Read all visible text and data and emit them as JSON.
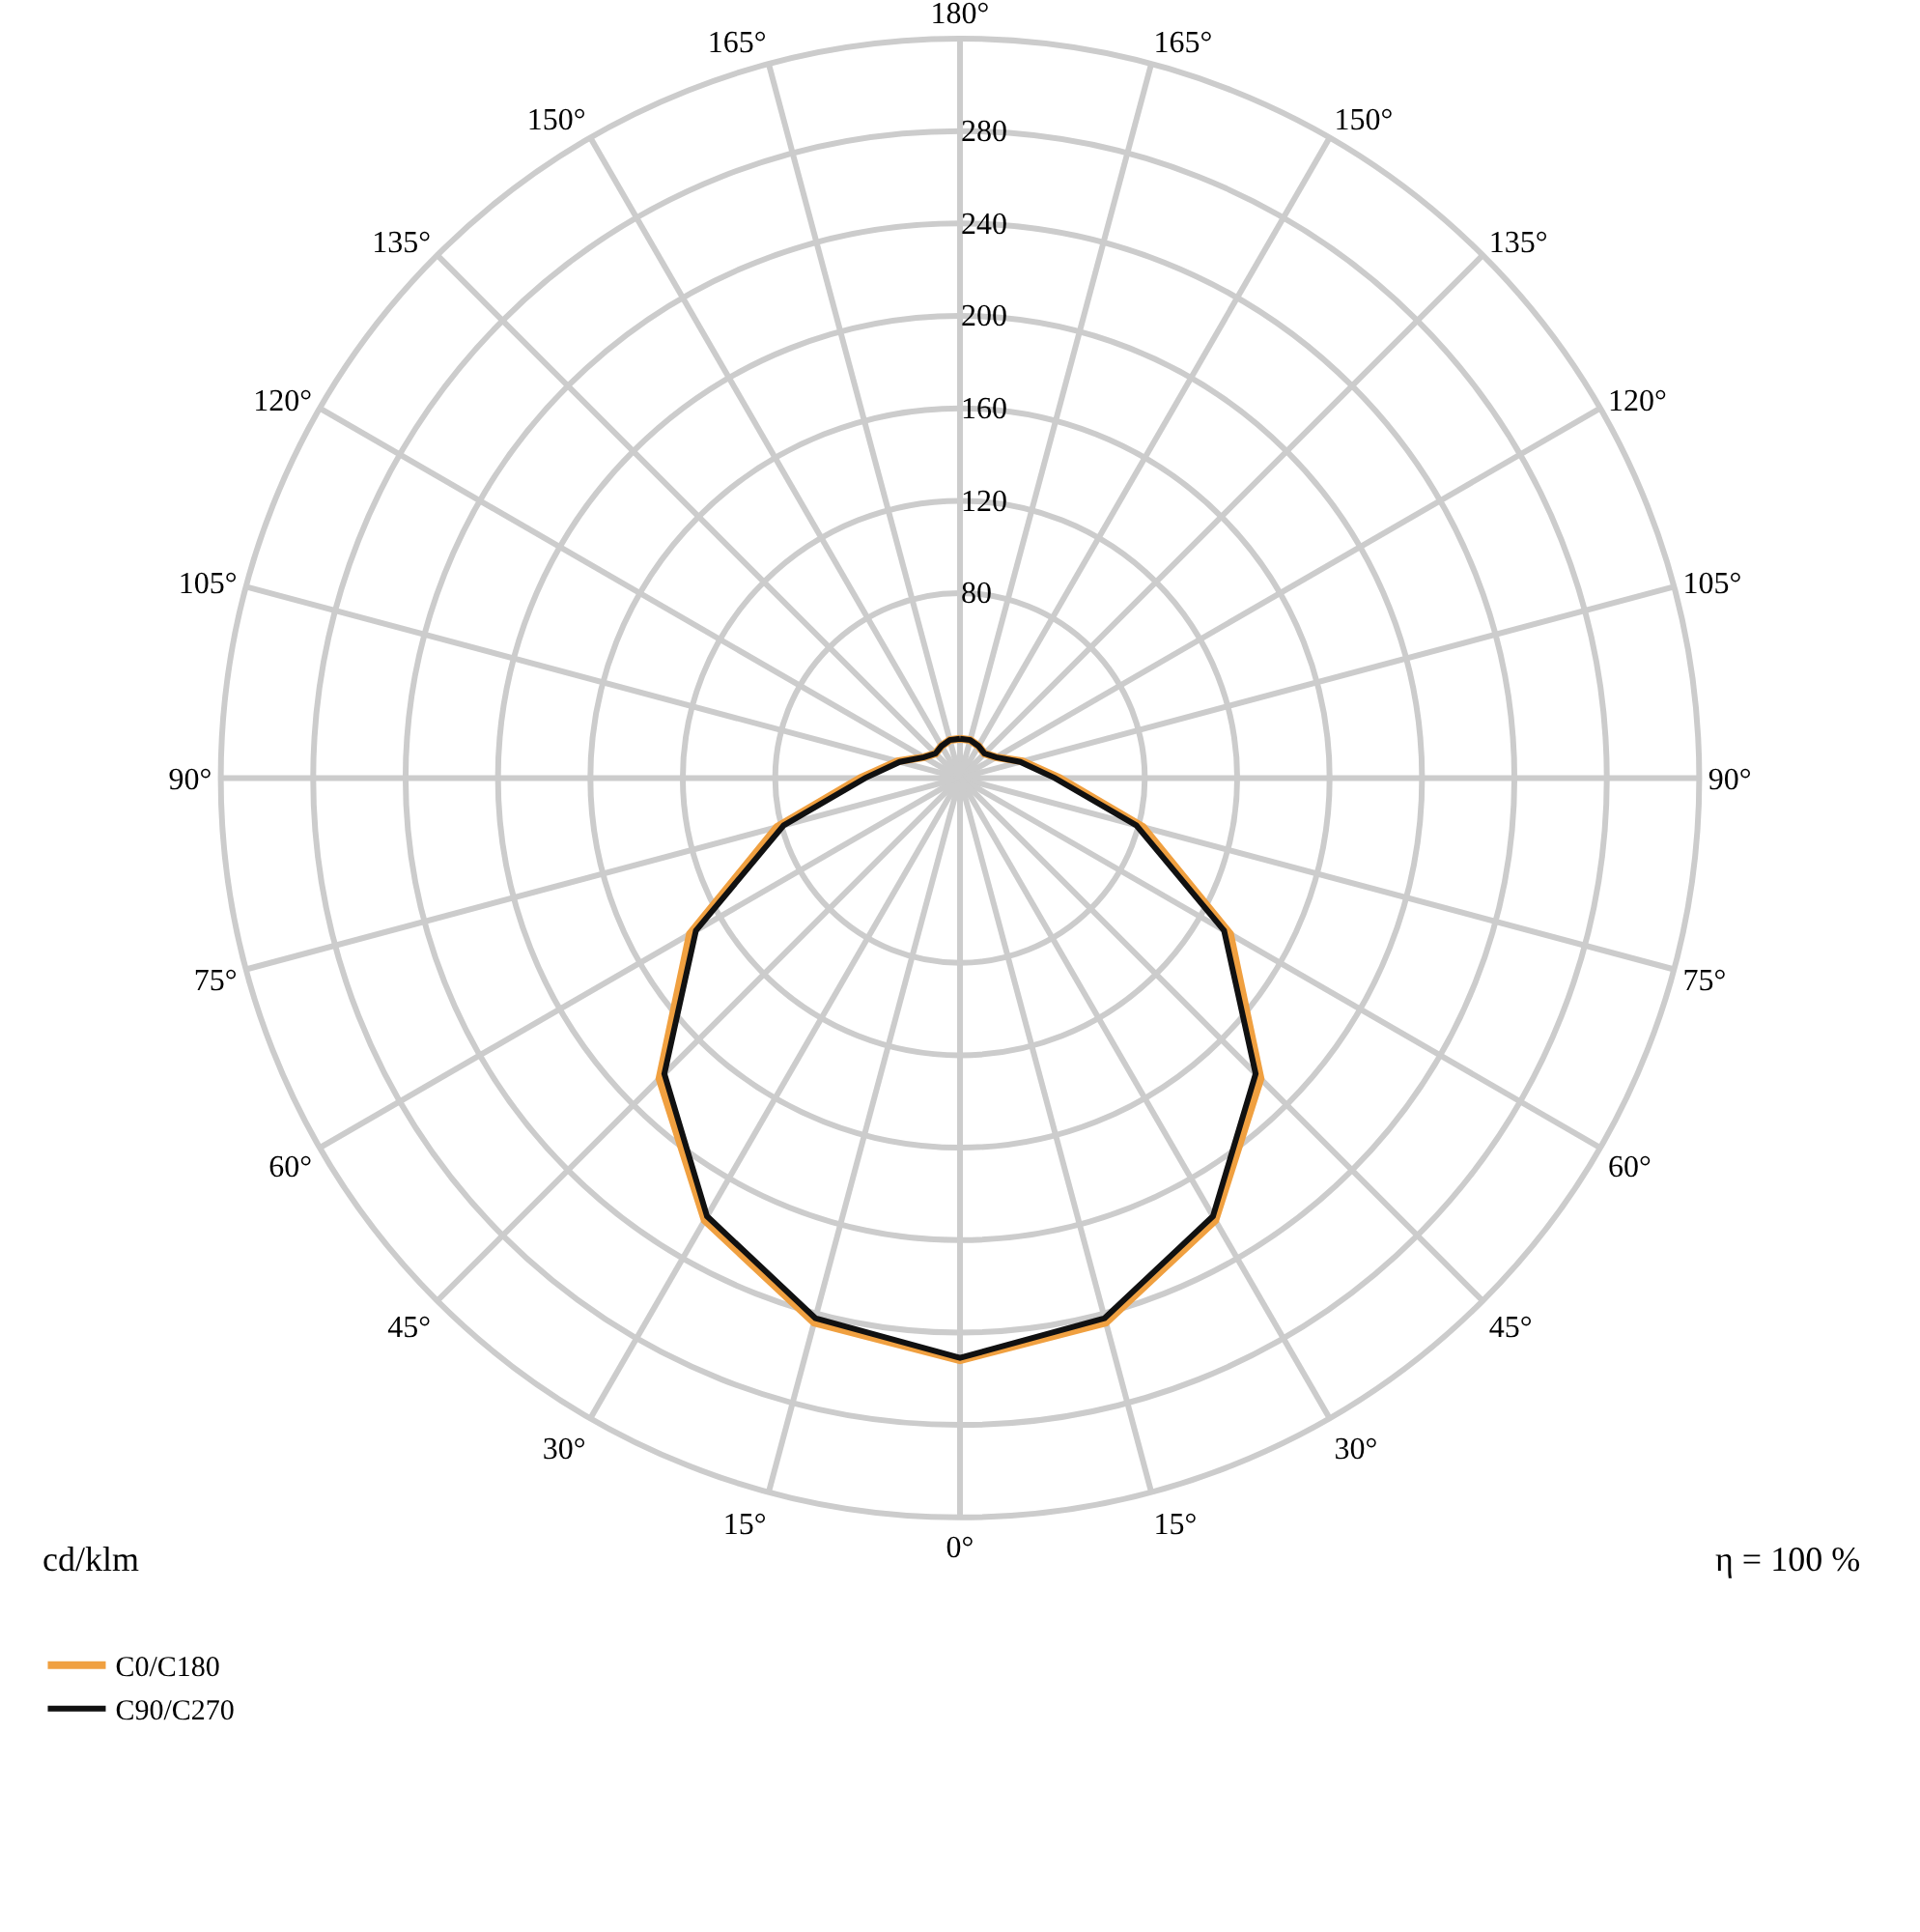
{
  "chart_data": {
    "type": "radar",
    "categories": [
      "180°",
      "165°",
      "150°",
      "135°",
      "120°",
      "105°",
      "90°",
      "75°",
      "60°",
      "45°",
      "30°",
      "15°",
      "0°",
      "15°",
      "30°",
      "45°",
      "60°",
      "75°",
      "90°",
      "105°",
      "120°",
      "135°",
      "150°",
      "165°"
    ],
    "series": [
      {
        "name": "C0/C180",
        "color": "#f0a040",
        "values": [
          17,
          17,
          16,
          15,
          18,
          28,
          43,
          82,
          135,
          184,
          221,
          244,
          252,
          244,
          221,
          184,
          135,
          82,
          43,
          28,
          18,
          15,
          16,
          17
        ]
      },
      {
        "name": "C90/C270",
        "color": "#111111",
        "values": [
          17,
          17,
          16,
          15,
          18,
          27,
          41,
          79,
          132,
          181,
          219,
          242,
          251,
          242,
          219,
          181,
          132,
          79,
          41,
          27,
          18,
          15,
          16,
          17
        ]
      }
    ],
    "ylim": [
      0,
      320
    ],
    "yticks": [
      80,
      120,
      160,
      200,
      240,
      280
    ],
    "ylabel": "cd/klm",
    "annotations": [
      "η = 100 %"
    ],
    "grid": true,
    "legend": "bottom left",
    "marker": "none",
    "line_style": "solid"
  }
}
